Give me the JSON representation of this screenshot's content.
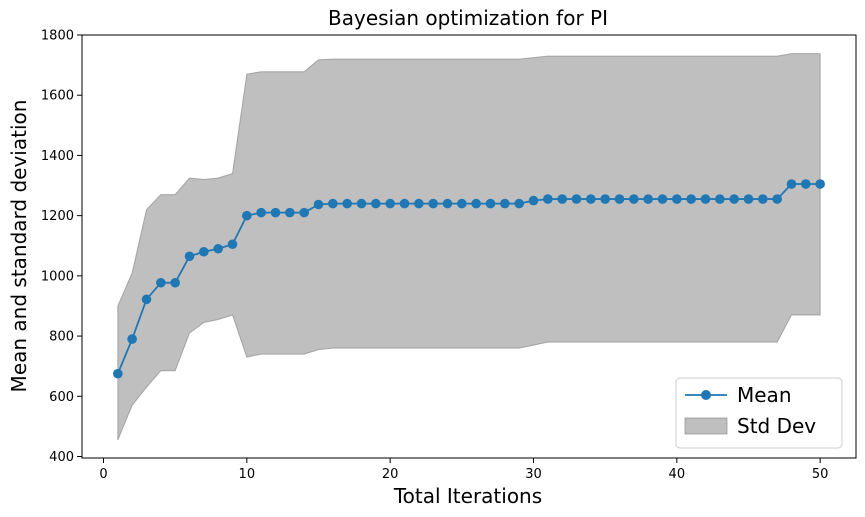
{
  "chart_data": {
    "type": "line",
    "title": "Bayesian optimization for PI",
    "xlabel": "Total Iterations",
    "ylabel": "Mean and standard deviation",
    "xlim": [
      -1.5,
      52.5
    ],
    "ylim": [
      395,
      1800
    ],
    "xticks": [
      0,
      10,
      20,
      30,
      40,
      50
    ],
    "yticks": [
      400,
      600,
      800,
      1000,
      1200,
      1400,
      1600,
      1800
    ],
    "grid": false,
    "legend_position": "lower-right",
    "series": [
      {
        "name": "Mean",
        "kind": "line-marker",
        "color": "#1f77b4",
        "x": [
          1,
          2,
          3,
          4,
          5,
          6,
          7,
          8,
          9,
          10,
          11,
          12,
          13,
          14,
          15,
          16,
          17,
          18,
          19,
          20,
          21,
          22,
          23,
          24,
          25,
          26,
          27,
          28,
          29,
          30,
          31,
          32,
          33,
          34,
          35,
          36,
          37,
          38,
          39,
          40,
          41,
          42,
          43,
          44,
          45,
          46,
          47,
          48,
          49,
          50
        ],
        "y": [
          675,
          790,
          922,
          977,
          977,
          1065,
          1080,
          1090,
          1105,
          1200,
          1210,
          1210,
          1210,
          1210,
          1237,
          1240,
          1240,
          1240,
          1240,
          1240,
          1240,
          1240,
          1240,
          1240,
          1240,
          1240,
          1240,
          1240,
          1240,
          1250,
          1255,
          1255,
          1255,
          1255,
          1255,
          1255,
          1255,
          1255,
          1255,
          1255,
          1255,
          1255,
          1255,
          1255,
          1255,
          1255,
          1255,
          1305,
          1305,
          1305
        ]
      },
      {
        "name": "Std Dev",
        "kind": "band",
        "color": "#808080",
        "x": [
          1,
          2,
          3,
          4,
          5,
          6,
          7,
          8,
          9,
          10,
          11,
          12,
          13,
          14,
          15,
          16,
          17,
          18,
          19,
          20,
          21,
          22,
          23,
          24,
          25,
          26,
          27,
          28,
          29,
          30,
          31,
          32,
          33,
          34,
          35,
          36,
          37,
          38,
          39,
          40,
          41,
          42,
          43,
          44,
          45,
          46,
          47,
          48,
          49,
          50
        ],
        "lower": [
          455,
          570,
          630,
          685,
          685,
          810,
          845,
          855,
          870,
          730,
          740,
          740,
          740,
          740,
          755,
          760,
          760,
          760,
          760,
          760,
          760,
          760,
          760,
          760,
          760,
          760,
          760,
          760,
          760,
          770,
          780,
          780,
          780,
          780,
          780,
          780,
          780,
          780,
          780,
          780,
          780,
          780,
          780,
          780,
          780,
          780,
          780,
          870,
          870,
          870
        ],
        "upper": [
          900,
          1010,
          1220,
          1270,
          1270,
          1325,
          1320,
          1325,
          1340,
          1670,
          1678,
          1678,
          1678,
          1678,
          1718,
          1720,
          1720,
          1720,
          1720,
          1720,
          1720,
          1720,
          1720,
          1720,
          1720,
          1720,
          1720,
          1720,
          1720,
          1725,
          1730,
          1730,
          1730,
          1730,
          1730,
          1730,
          1730,
          1730,
          1730,
          1730,
          1730,
          1730,
          1730,
          1730,
          1730,
          1730,
          1730,
          1738,
          1738,
          1738
        ]
      }
    ]
  }
}
